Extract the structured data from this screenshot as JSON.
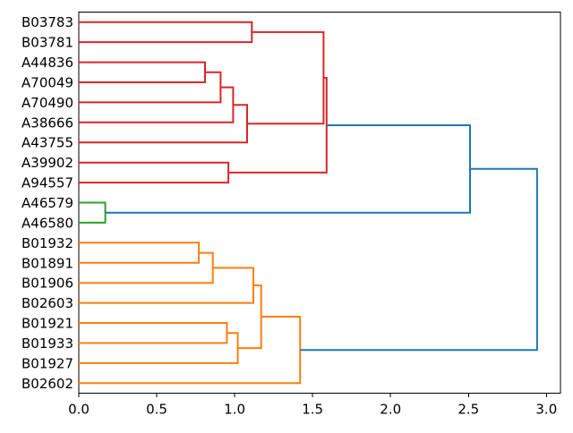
{
  "figure": {
    "background": "#ffffff",
    "frame_color": "#000000",
    "label_color": "#000000"
  },
  "chart_data": {
    "type": "dendrogram",
    "orientation": "right",
    "title": "",
    "xlabel": "",
    "ylabel": "",
    "grid": false,
    "xlim": [
      0,
      3.09
    ],
    "x_ticks": [
      {
        "value": 0.0,
        "label": "0.0"
      },
      {
        "value": 0.5,
        "label": "0.5"
      },
      {
        "value": 1.0,
        "label": "1.0"
      },
      {
        "value": 1.5,
        "label": "1.5"
      },
      {
        "value": 2.0,
        "label": "2.0"
      },
      {
        "value": 2.5,
        "label": "2.5"
      },
      {
        "value": 3.0,
        "label": "3.0"
      }
    ],
    "leaves": [
      "B03783",
      "B03781",
      "A44836",
      "A70049",
      "A70490",
      "A38666",
      "A43755",
      "A39902",
      "A94557",
      "A46579",
      "A46580",
      "B01932",
      "B01891",
      "B01906",
      "B02603",
      "B01921",
      "B01933",
      "B01927",
      "B02602"
    ],
    "merges": [
      {
        "id": "R1",
        "a": "A44836",
        "b": "A70049",
        "distance": 0.81,
        "color": "red"
      },
      {
        "id": "R2",
        "a": "R1",
        "b": "A70490",
        "distance": 0.91,
        "color": "red"
      },
      {
        "id": "R3",
        "a": "R2",
        "b": "A38666",
        "distance": 0.99,
        "color": "red"
      },
      {
        "id": "R4",
        "a": "R3",
        "b": "A43755",
        "distance": 1.08,
        "color": "red"
      },
      {
        "id": "R5",
        "a": "B03783",
        "b": "B03781",
        "distance": 1.11,
        "color": "red"
      },
      {
        "id": "R6",
        "a": "A39902",
        "b": "A94557",
        "distance": 0.96,
        "color": "red"
      },
      {
        "id": "R7",
        "a": "R5",
        "b": "R4",
        "distance": 1.57,
        "color": "red"
      },
      {
        "id": "R8",
        "a": "R7",
        "b": "R6",
        "distance": 1.59,
        "color": "red"
      },
      {
        "id": "G1",
        "a": "A46579",
        "b": "A46580",
        "distance": 0.17,
        "color": "green"
      },
      {
        "id": "O1",
        "a": "B01932",
        "b": "B01891",
        "distance": 0.77,
        "color": "orange"
      },
      {
        "id": "O2",
        "a": "O1",
        "b": "B01906",
        "distance": 0.86,
        "color": "orange"
      },
      {
        "id": "O3",
        "a": "O2",
        "b": "B02603",
        "distance": 1.12,
        "color": "orange"
      },
      {
        "id": "O4",
        "a": "B01921",
        "b": "B01933",
        "distance": 0.95,
        "color": "orange"
      },
      {
        "id": "O5",
        "a": "O4",
        "b": "B01927",
        "distance": 1.02,
        "color": "orange"
      },
      {
        "id": "O6",
        "a": "O3",
        "b": "O5",
        "distance": 1.17,
        "color": "orange"
      },
      {
        "id": "O7",
        "a": "O6",
        "b": "B02602",
        "distance": 1.42,
        "color": "orange"
      },
      {
        "id": "B1",
        "a": "R8",
        "b": "G1",
        "distance": 2.51,
        "color": "blue"
      },
      {
        "id": "B2",
        "a": "B1",
        "b": "O7",
        "distance": 2.94,
        "color": "blue"
      }
    ],
    "colors": {
      "red": "#d62728",
      "green": "#2ca02c",
      "orange": "#ff7f0e",
      "blue": "#1f77b4"
    }
  }
}
